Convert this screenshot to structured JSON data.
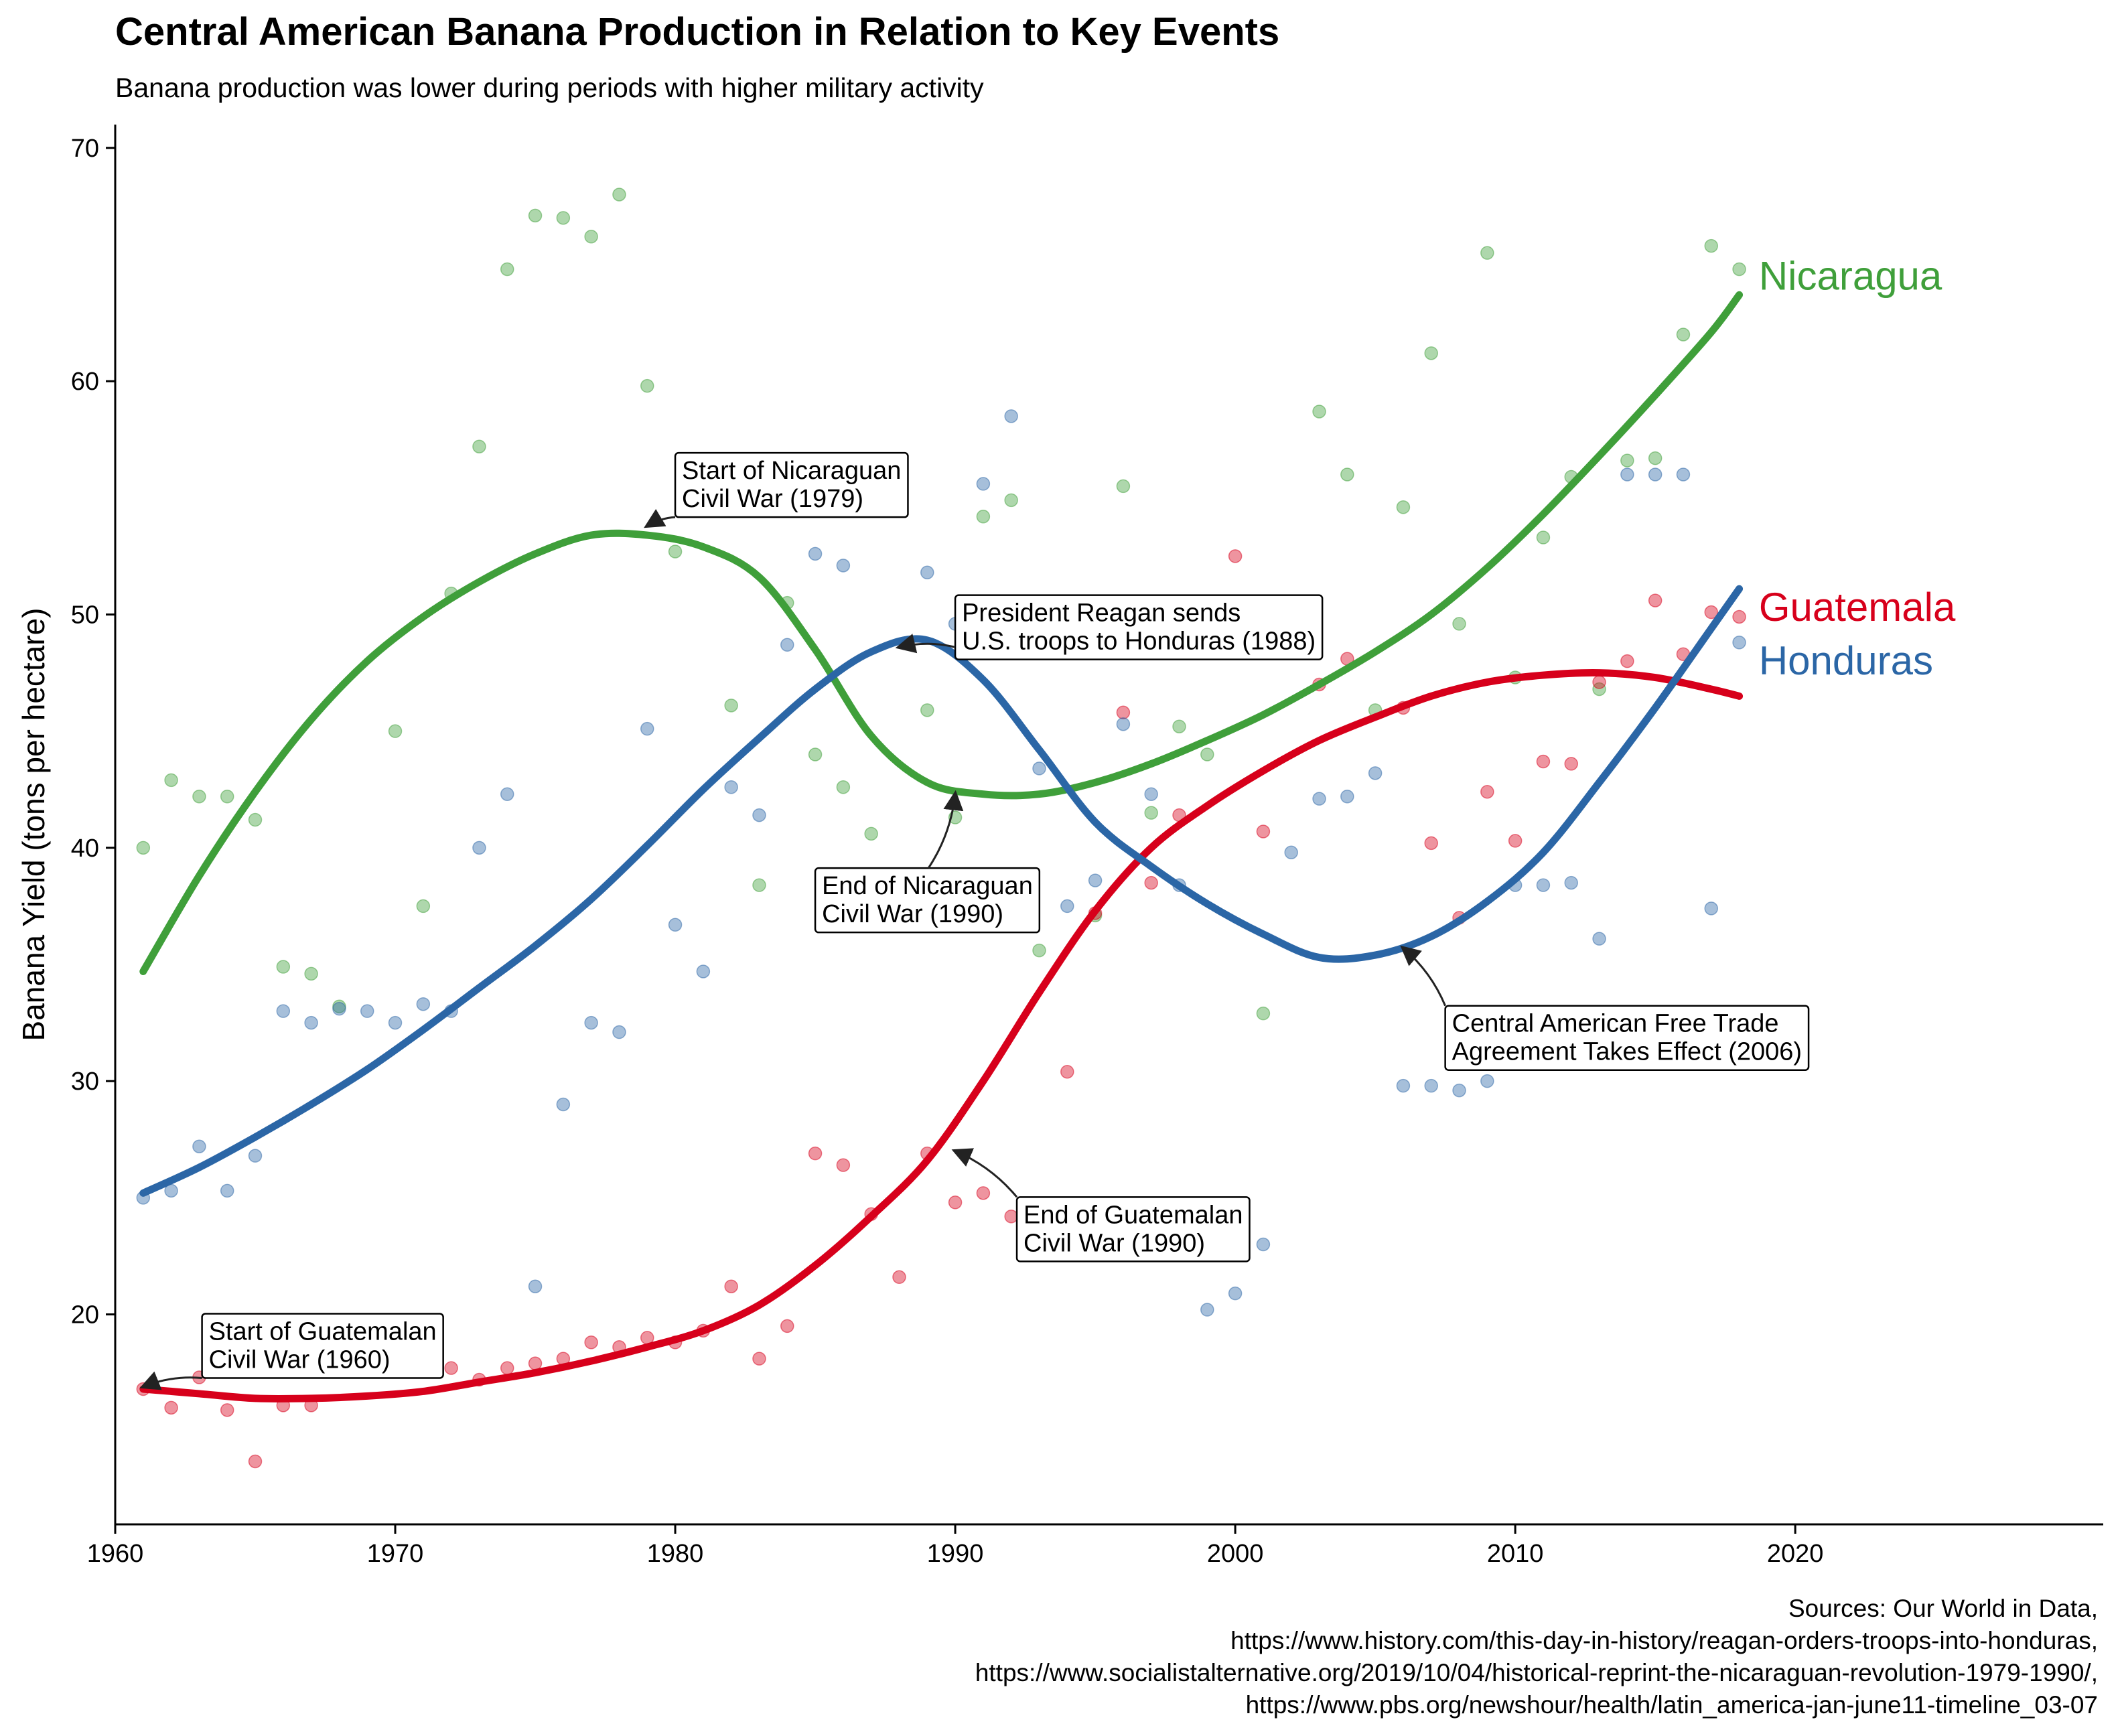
{
  "title": "Central American Banana Production in Relation to Key Events",
  "subtitle": "Banana production was lower during periods with higher military activity",
  "sources": [
    "Sources: Our World in Data,",
    "https://www.history.com/this-day-in-history/reagan-orders-troops-into-honduras,",
    "https://www.socialistalternative.org/2019/10/04/historical-reprint-the-nicaraguan-revolution-1979-1990/,",
    "https://www.pbs.org/newshour/health/latin_america-jan-june11-timeline_03-07"
  ],
  "chart_data": {
    "type": "scatter",
    "title": "Central American Banana Production in Relation to Key Events",
    "subtitle": "Banana production was lower during periods with higher military activity",
    "xlabel": "",
    "ylabel": "Banana Yield (tons per hectare)",
    "xlim": [
      1960,
      2031
    ],
    "ylim": [
      11,
      71
    ],
    "xticks": [
      1960,
      1970,
      1980,
      1990,
      2000,
      2010,
      2020
    ],
    "yticks": [
      20,
      30,
      40,
      50,
      60,
      70
    ],
    "grid": false,
    "legend": "direct labels at line ends",
    "series": [
      {
        "name": "Nicaragua",
        "color": "#3f9f3a",
        "points": [
          [
            1961,
            40.0
          ],
          [
            1962,
            42.9
          ],
          [
            1963,
            42.2
          ],
          [
            1964,
            42.2
          ],
          [
            1965,
            41.2
          ],
          [
            1966,
            34.9
          ],
          [
            1967,
            34.6
          ],
          [
            1968,
            33.2
          ],
          [
            1970,
            45.0
          ],
          [
            1971,
            37.5
          ],
          [
            1972,
            50.9
          ],
          [
            1973,
            57.2
          ],
          [
            1974,
            64.8
          ],
          [
            1975,
            67.1
          ],
          [
            1976,
            67.0
          ],
          [
            1977,
            66.2
          ],
          [
            1978,
            68.0
          ],
          [
            1979,
            59.8
          ],
          [
            1980,
            52.7
          ],
          [
            1982,
            46.1
          ],
          [
            1983,
            38.4
          ],
          [
            1984,
            50.5
          ],
          [
            1985,
            44.0
          ],
          [
            1986,
            42.6
          ],
          [
            1987,
            40.6
          ],
          [
            1989,
            45.9
          ],
          [
            1990,
            41.3
          ],
          [
            1991,
            54.2
          ],
          [
            1992,
            54.9
          ],
          [
            1993,
            35.6
          ],
          [
            1995,
            37.1
          ],
          [
            1996,
            55.5
          ],
          [
            1997,
            41.5
          ],
          [
            1998,
            45.2
          ],
          [
            1999,
            44.0
          ],
          [
            2001,
            32.9
          ],
          [
            2003,
            58.7
          ],
          [
            2004,
            56.0
          ],
          [
            2005,
            45.9
          ],
          [
            2006,
            54.6
          ],
          [
            2007,
            61.2
          ],
          [
            2008,
            49.6
          ],
          [
            2009,
            65.5
          ],
          [
            2010,
            47.3
          ],
          [
            2011,
            53.3
          ],
          [
            2012,
            55.9
          ],
          [
            2013,
            46.8
          ],
          [
            2014,
            56.6
          ],
          [
            2015,
            56.7
          ],
          [
            2016,
            62.0
          ],
          [
            2017,
            65.8
          ],
          [
            2018,
            64.8
          ]
        ],
        "smooth": [
          [
            1961,
            34.7
          ],
          [
            1963,
            38.8
          ],
          [
            1965,
            42.4
          ],
          [
            1967,
            45.5
          ],
          [
            1969,
            48.0
          ],
          [
            1971,
            49.9
          ],
          [
            1973,
            51.4
          ],
          [
            1975,
            52.6
          ],
          [
            1977,
            53.4
          ],
          [
            1979,
            53.4
          ],
          [
            1981,
            52.9
          ],
          [
            1983,
            51.6
          ],
          [
            1985,
            48.5
          ],
          [
            1987,
            44.8
          ],
          [
            1989,
            42.8
          ],
          [
            1991,
            42.3
          ],
          [
            1993,
            42.3
          ],
          [
            1995,
            42.8
          ],
          [
            1997,
            43.6
          ],
          [
            1999,
            44.6
          ],
          [
            2001,
            45.7
          ],
          [
            2003,
            47.0
          ],
          [
            2005,
            48.4
          ],
          [
            2007,
            50.0
          ],
          [
            2009,
            52.0
          ],
          [
            2011,
            54.3
          ],
          [
            2013,
            56.8
          ],
          [
            2015,
            59.4
          ],
          [
            2017,
            62.1
          ],
          [
            2018,
            63.7
          ]
        ]
      },
      {
        "name": "Guatemala",
        "color": "#d7001b",
        "points": [
          [
            1961,
            16.8
          ],
          [
            1962,
            16.0
          ],
          [
            1963,
            17.3
          ],
          [
            1964,
            15.9
          ],
          [
            1965,
            13.7
          ],
          [
            1966,
            16.1
          ],
          [
            1967,
            16.1
          ],
          [
            1968,
            18.1
          ],
          [
            1969,
            17.8
          ],
          [
            1970,
            18.7
          ],
          [
            1971,
            18.1
          ],
          [
            1972,
            17.7
          ],
          [
            1973,
            17.2
          ],
          [
            1974,
            17.7
          ],
          [
            1975,
            17.9
          ],
          [
            1976,
            18.1
          ],
          [
            1977,
            18.8
          ],
          [
            1978,
            18.6
          ],
          [
            1979,
            19.0
          ],
          [
            1980,
            18.8
          ],
          [
            1981,
            19.3
          ],
          [
            1982,
            21.2
          ],
          [
            1983,
            18.1
          ],
          [
            1984,
            19.5
          ],
          [
            1985,
            26.9
          ],
          [
            1986,
            26.4
          ],
          [
            1987,
            24.3
          ],
          [
            1988,
            21.6
          ],
          [
            1989,
            26.9
          ],
          [
            1990,
            24.8
          ],
          [
            1991,
            25.2
          ],
          [
            1992,
            24.2
          ],
          [
            1993,
            23.4
          ],
          [
            1994,
            30.4
          ],
          [
            1995,
            37.2
          ],
          [
            1996,
            45.8
          ],
          [
            1997,
            38.5
          ],
          [
            1998,
            41.4
          ],
          [
            2000,
            52.5
          ],
          [
            2001,
            40.7
          ],
          [
            2003,
            47.0
          ],
          [
            2004,
            48.1
          ],
          [
            2006,
            46.0
          ],
          [
            2007,
            40.2
          ],
          [
            2008,
            37.0
          ],
          [
            2009,
            42.4
          ],
          [
            2010,
            40.3
          ],
          [
            2011,
            43.7
          ],
          [
            2012,
            43.6
          ],
          [
            2013,
            47.1
          ],
          [
            2014,
            48.0
          ],
          [
            2015,
            50.6
          ],
          [
            2016,
            48.3
          ],
          [
            2017,
            50.1
          ],
          [
            2018,
            49.9
          ]
        ],
        "smooth": [
          [
            1961,
            16.8
          ],
          [
            1963,
            16.6
          ],
          [
            1965,
            16.4
          ],
          [
            1967,
            16.4
          ],
          [
            1969,
            16.5
          ],
          [
            1971,
            16.7
          ],
          [
            1973,
            17.1
          ],
          [
            1975,
            17.5
          ],
          [
            1977,
            18.0
          ],
          [
            1979,
            18.6
          ],
          [
            1981,
            19.3
          ],
          [
            1983,
            20.4
          ],
          [
            1985,
            22.1
          ],
          [
            1987,
            24.2
          ],
          [
            1989,
            26.6
          ],
          [
            1991,
            30.0
          ],
          [
            1993,
            33.8
          ],
          [
            1995,
            37.3
          ],
          [
            1997,
            40.0
          ],
          [
            1999,
            41.8
          ],
          [
            2001,
            43.3
          ],
          [
            2003,
            44.6
          ],
          [
            2005,
            45.6
          ],
          [
            2007,
            46.5
          ],
          [
            2009,
            47.1
          ],
          [
            2011,
            47.4
          ],
          [
            2013,
            47.5
          ],
          [
            2015,
            47.3
          ],
          [
            2017,
            46.8
          ],
          [
            2018,
            46.5
          ]
        ]
      },
      {
        "name": "Honduras",
        "color": "#2b66a6",
        "points": [
          [
            1961,
            25.0
          ],
          [
            1962,
            25.3
          ],
          [
            1963,
            27.2
          ],
          [
            1964,
            25.3
          ],
          [
            1965,
            26.8
          ],
          [
            1966,
            33.0
          ],
          [
            1967,
            32.5
          ],
          [
            1968,
            33.1
          ],
          [
            1969,
            33.0
          ],
          [
            1970,
            32.5
          ],
          [
            1971,
            33.3
          ],
          [
            1972,
            33.0
          ],
          [
            1973,
            40.0
          ],
          [
            1974,
            42.3
          ],
          [
            1975,
            21.2
          ],
          [
            1976,
            29.0
          ],
          [
            1977,
            32.5
          ],
          [
            1978,
            32.1
          ],
          [
            1979,
            45.1
          ],
          [
            1980,
            36.7
          ],
          [
            1981,
            34.7
          ],
          [
            1982,
            42.6
          ],
          [
            1983,
            41.4
          ],
          [
            1984,
            48.7
          ],
          [
            1985,
            52.6
          ],
          [
            1986,
            52.1
          ],
          [
            1989,
            51.8
          ],
          [
            1990,
            49.6
          ],
          [
            1991,
            55.6
          ],
          [
            1992,
            58.5
          ],
          [
            1993,
            43.4
          ],
          [
            1994,
            37.5
          ],
          [
            1995,
            38.6
          ],
          [
            1996,
            45.3
          ],
          [
            1997,
            42.3
          ],
          [
            1998,
            38.4
          ],
          [
            1999,
            20.2
          ],
          [
            2000,
            20.9
          ],
          [
            2001,
            23.0
          ],
          [
            2002,
            39.8
          ],
          [
            2003,
            42.1
          ],
          [
            2004,
            42.2
          ],
          [
            2005,
            43.2
          ],
          [
            2006,
            29.8
          ],
          [
            2007,
            29.8
          ],
          [
            2008,
            29.6
          ],
          [
            2009,
            30.0
          ],
          [
            2010,
            38.4
          ],
          [
            2011,
            38.4
          ],
          [
            2012,
            38.5
          ],
          [
            2013,
            36.1
          ],
          [
            2014,
            56.0
          ],
          [
            2015,
            56.0
          ],
          [
            2016,
            56.0
          ],
          [
            2017,
            37.4
          ],
          [
            2018,
            48.8
          ]
        ],
        "smooth": [
          [
            1961,
            25.2
          ],
          [
            1963,
            26.3
          ],
          [
            1965,
            27.6
          ],
          [
            1967,
            29.0
          ],
          [
            1969,
            30.5
          ],
          [
            1971,
            32.2
          ],
          [
            1973,
            34.0
          ],
          [
            1975,
            35.8
          ],
          [
            1977,
            37.8
          ],
          [
            1979,
            40.1
          ],
          [
            1981,
            42.5
          ],
          [
            1983,
            44.7
          ],
          [
            1985,
            46.8
          ],
          [
            1987,
            48.4
          ],
          [
            1989,
            48.9
          ],
          [
            1991,
            47.2
          ],
          [
            1993,
            44.2
          ],
          [
            1995,
            41.1
          ],
          [
            1997,
            39.2
          ],
          [
            1999,
            37.6
          ],
          [
            2001,
            36.3
          ],
          [
            2003,
            35.3
          ],
          [
            2005,
            35.4
          ],
          [
            2007,
            36.2
          ],
          [
            2009,
            37.7
          ],
          [
            2011,
            39.8
          ],
          [
            2013,
            42.8
          ],
          [
            2015,
            46.0
          ],
          [
            2017,
            49.4
          ],
          [
            2018,
            51.1
          ]
        ]
      }
    ],
    "annotations": [
      {
        "lines": [
          "Start of Guatemalan",
          "Civil War (1960)"
        ],
        "target": [
          1961,
          16.9
        ],
        "box": [
          1963.1,
          20.0
        ]
      },
      {
        "lines": [
          "Start of Nicaraguan",
          "Civil War (1979)"
        ],
        "target": [
          1979,
          53.8
        ],
        "box": [
          1980.0,
          56.9
        ]
      },
      {
        "lines": [
          "President Reagan sends",
          "U.S. troops to Honduras (1988)"
        ],
        "target": [
          1988,
          48.6
        ],
        "box": [
          1990.0,
          50.8
        ]
      },
      {
        "lines": [
          "End of Nicaraguan",
          "Civil War (1990)"
        ],
        "target": [
          1990,
          42.3
        ],
        "box": [
          1985.0,
          39.1
        ]
      },
      {
        "lines": [
          "End of Guatemalan",
          "Civil War (1990)"
        ],
        "target": [
          1990,
          27.0
        ],
        "box": [
          1992.2,
          25.0
        ]
      },
      {
        "lines": [
          "Central American Free Trade",
          "Agreement Takes Effect (2006)"
        ],
        "target": [
          2006,
          35.7
        ],
        "box": [
          2007.5,
          33.2
        ]
      }
    ]
  }
}
